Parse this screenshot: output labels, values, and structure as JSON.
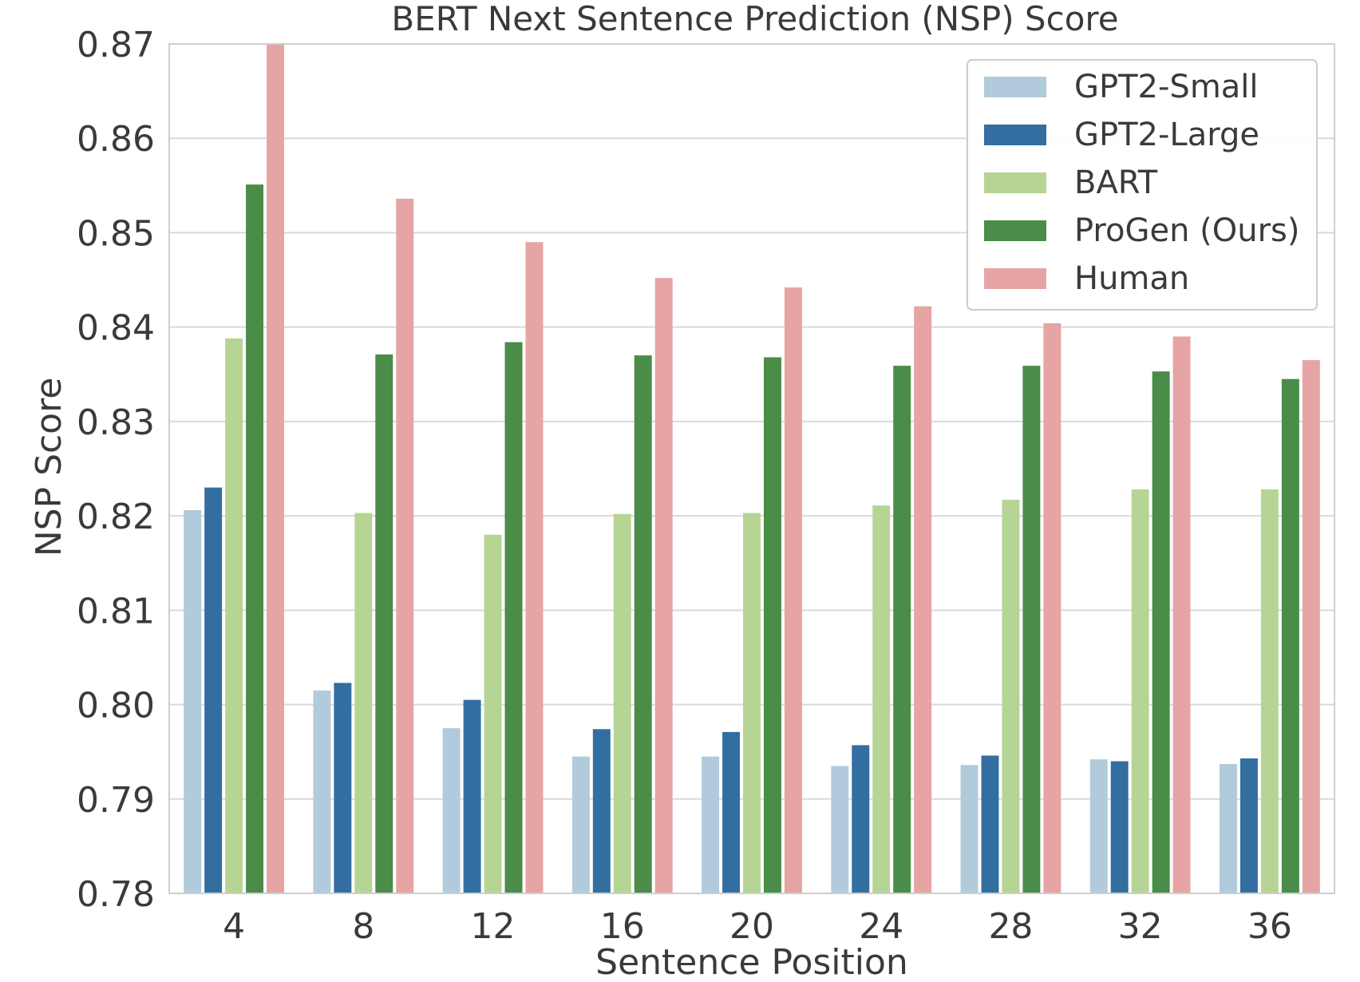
{
  "chart_data": {
    "type": "bar",
    "title": "BERT Next Sentence Prediction (NSP) Score",
    "xlabel": "Sentence Position",
    "ylabel": "NSP Score",
    "categories": [
      "4",
      "8",
      "12",
      "16",
      "20",
      "24",
      "28",
      "32",
      "36"
    ],
    "ylim": [
      0.78,
      0.87
    ],
    "yticks": [
      "0.78",
      "0.79",
      "0.80",
      "0.81",
      "0.82",
      "0.83",
      "0.84",
      "0.85",
      "0.86",
      "0.87"
    ],
    "grid": "horizontal",
    "legend_position": "top-right",
    "series": [
      {
        "name": "GPT2-Small",
        "color": "#b1cbdc",
        "values": [
          0.8206,
          0.8015,
          0.7975,
          0.7945,
          0.7945,
          0.7935,
          0.7936,
          0.7942,
          0.7937
        ]
      },
      {
        "name": "GPT2-Large",
        "color": "#336ea0",
        "values": [
          0.823,
          0.8023,
          0.8005,
          0.7974,
          0.7971,
          0.7957,
          0.7946,
          0.794,
          0.7943
        ]
      },
      {
        "name": "BART",
        "color": "#b6d595",
        "values": [
          0.8388,
          0.8203,
          0.818,
          0.8202,
          0.8203,
          0.8211,
          0.8217,
          0.8228,
          0.8228
        ]
      },
      {
        "name": "ProGen (Ours)",
        "color": "#4b8c48",
        "values": [
          0.8551,
          0.8371,
          0.8384,
          0.837,
          0.8368,
          0.8359,
          0.8359,
          0.8353,
          0.8345
        ]
      },
      {
        "name": "Human",
        "color": "#e6a4a5",
        "values": [
          0.87,
          0.8536,
          0.849,
          0.8452,
          0.8442,
          0.8422,
          0.8404,
          0.839,
          0.8365
        ]
      }
    ]
  }
}
